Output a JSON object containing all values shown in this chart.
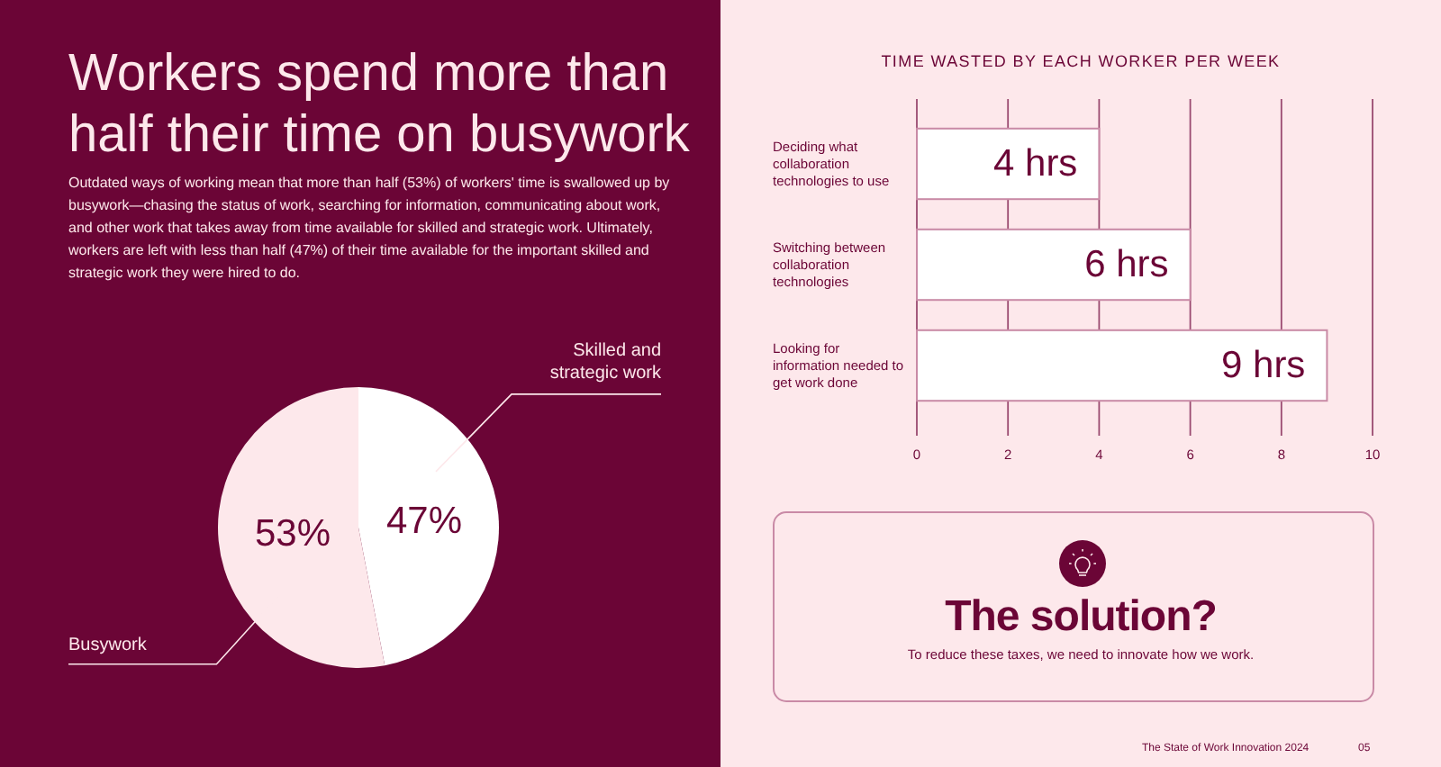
{
  "chart_data": [
    {
      "type": "pie",
      "title": "Workers spend more than half their time on busywork",
      "subtitle": "Outdated ways of working mean that more than half (53%) of workers' time is swallowed up by busywork—chasing the status of work, searching for information, communicating about work, and other work that takes away from time available for skilled and strategic work. Ultimately, workers are left with less than half (47%) of their time available for the important skilled and strategic work they were hired to do.",
      "categories": [
        "Skilled and strategic work",
        "Busywork"
      ],
      "values": [
        47,
        53
      ],
      "colors": [
        "#ffffff",
        "#fde8eb"
      ],
      "value_labels": [
        "47%",
        "53%"
      ]
    },
    {
      "type": "bar",
      "orientation": "horizontal",
      "title": "TIME WASTED BY EACH WORKER PER WEEK",
      "categories": [
        "Deciding what collaboration technologies to use",
        "Switching between collaboration technologies",
        "Looking for information needed to get work done"
      ],
      "values": [
        4,
        6,
        9
      ],
      "color": "#ffffff",
      "value_labels": [
        "4 hrs",
        "6 hrs",
        "9 hrs"
      ],
      "xlim": [
        0,
        10
      ],
      "xticks": [
        0,
        2,
        4,
        6,
        8,
        10
      ],
      "grid": "x"
    },
    {
      "type": "other",
      "title": "The solution?",
      "subtitle": "To reduce these taxes, we need to innovate how we work.",
      "annotations": [
        "The State of Work Innovation 2024",
        "05"
      ]
    }
  ]
}
